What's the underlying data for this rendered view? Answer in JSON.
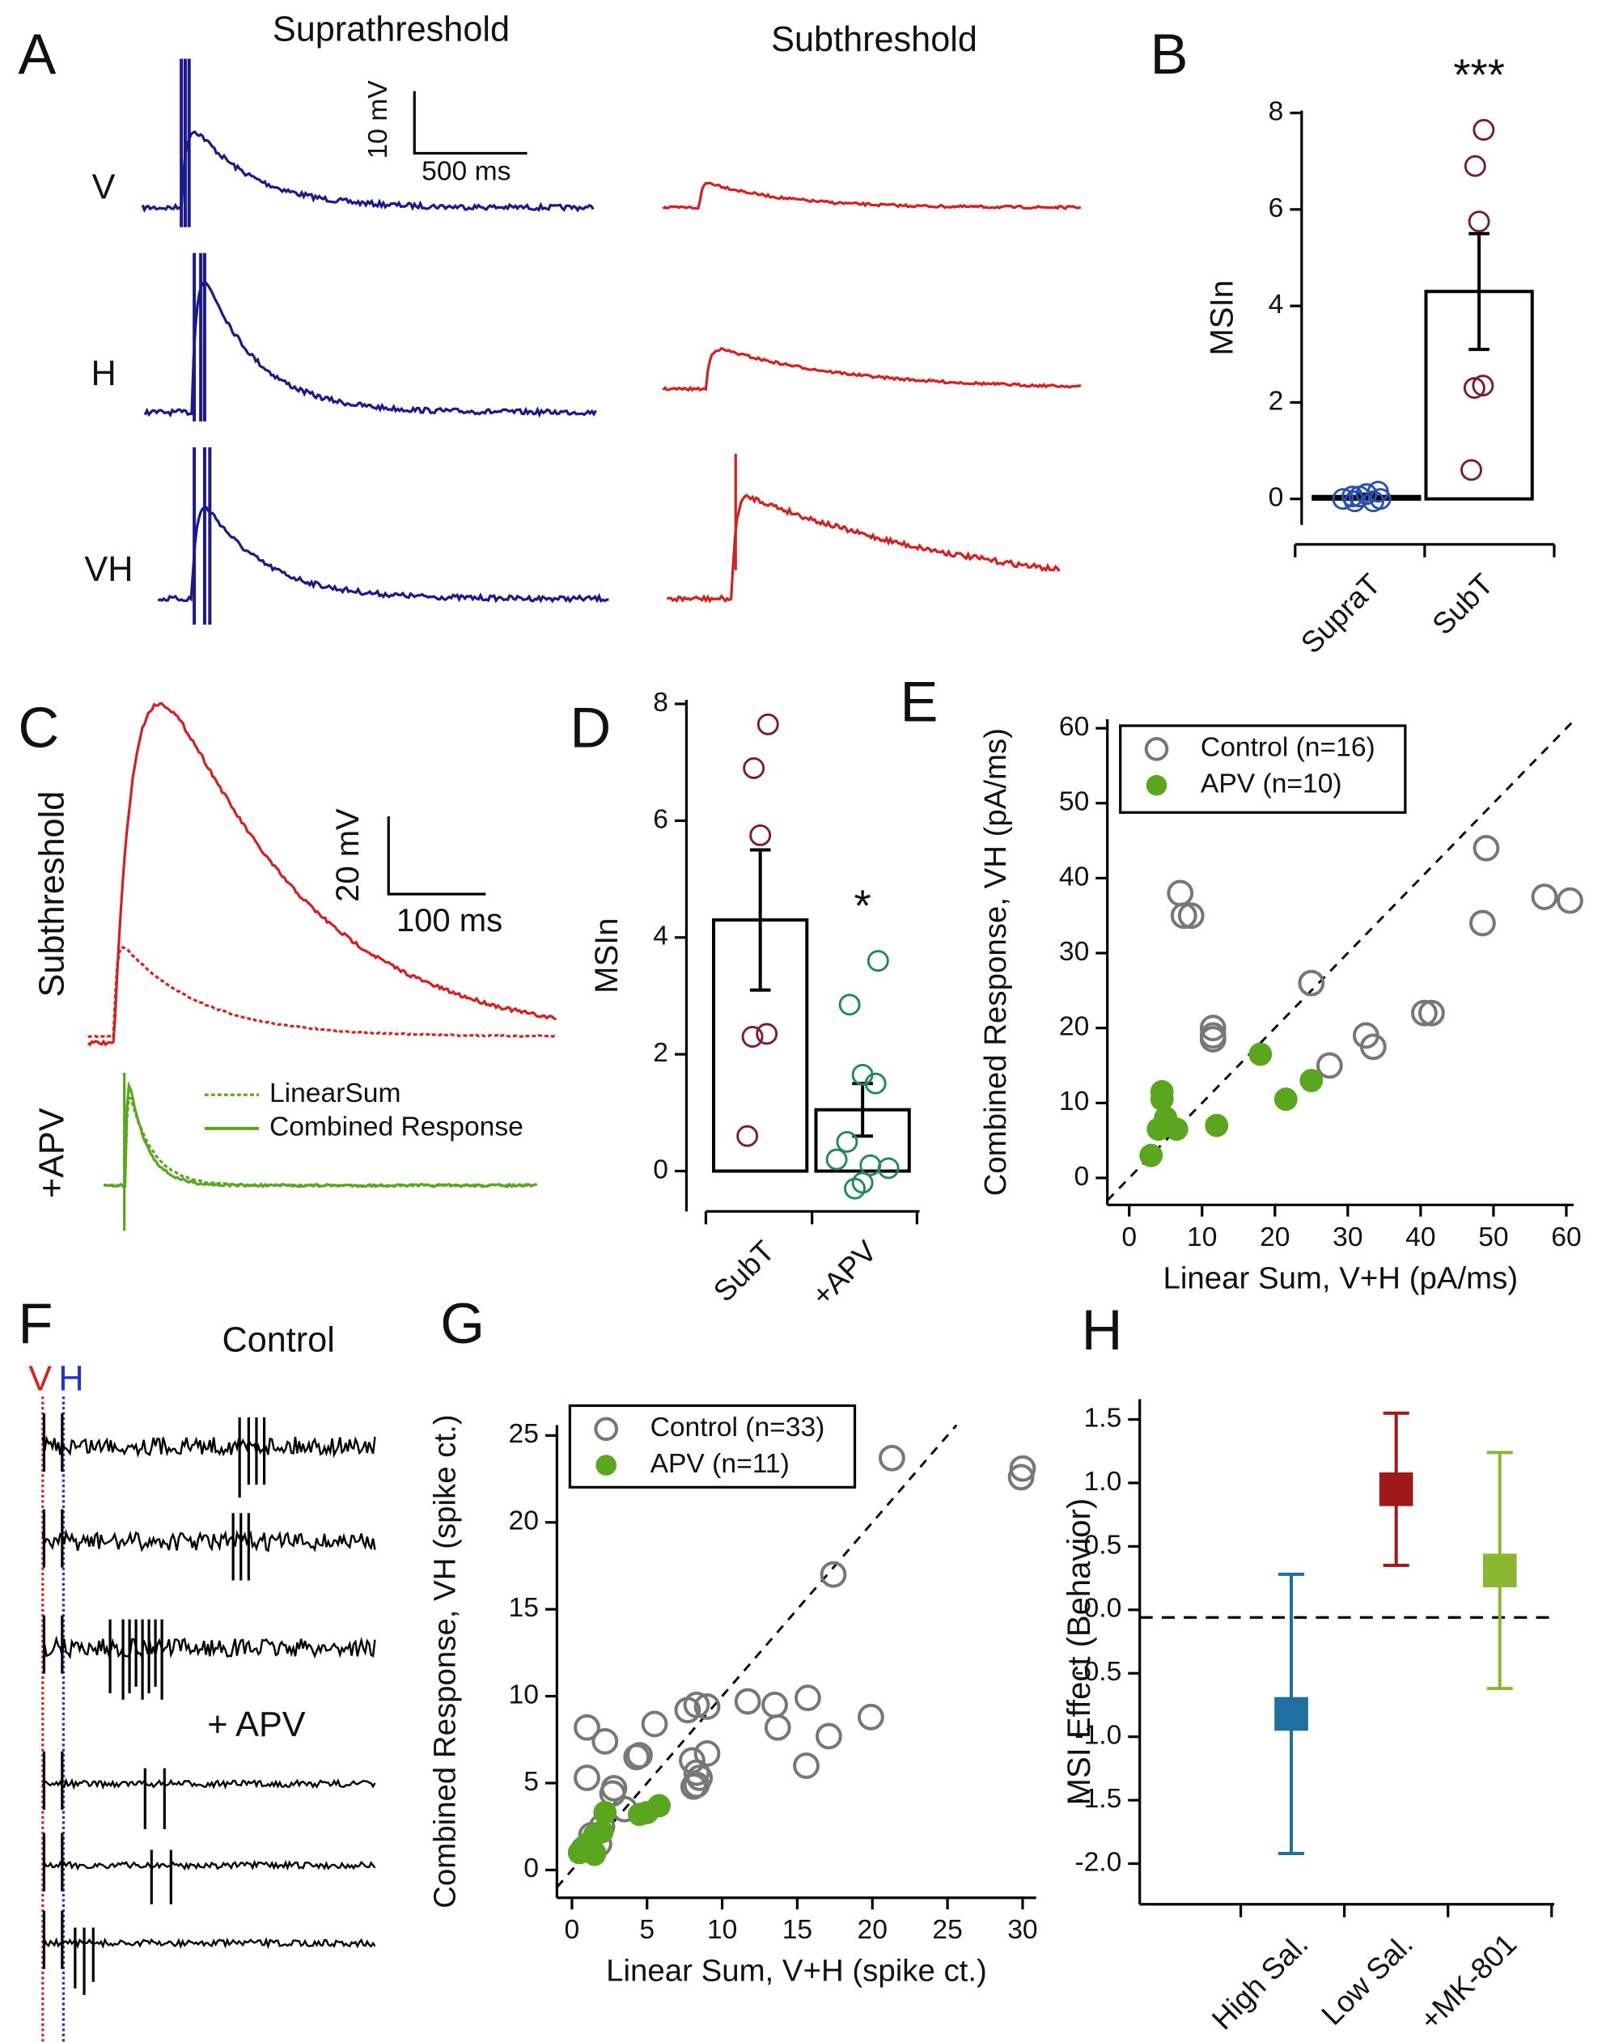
{
  "panel_labels": [
    "A",
    "B",
    "C",
    "D",
    "E",
    "F",
    "G",
    "H"
  ],
  "panel_a": {
    "titles": [
      "Suprathreshold",
      "Subthreshold"
    ],
    "rows": [
      "V",
      "H",
      "VH"
    ],
    "scale_bar": [
      "10 mV",
      "500 ms"
    ]
  },
  "panel_c": {
    "labels": [
      "Subthreshold",
      "+APV"
    ],
    "legend": [
      "LinearSum",
      "Combined Response"
    ],
    "scale_bar": [
      "20 mV",
      "100 ms"
    ]
  },
  "panel_f": {
    "labels": [
      "Control",
      "+ APV"
    ],
    "markers": [
      "V",
      "H"
    ]
  },
  "chart_data": [
    {
      "type": "bar",
      "ylabel": "MSIn",
      "categories": [
        "SupraT",
        "SubT"
      ],
      "values": [
        0.05,
        4.3
      ],
      "errors": [
        0.05,
        1.2
      ],
      "points": [
        [
          0.0,
          -0.05,
          0.1,
          0.15,
          0.05,
          0.0,
          -0.05,
          0.1,
          0.05
        ],
        [
          7.65,
          6.9,
          5.75,
          2.35,
          2.3,
          0.6
        ]
      ],
      "point_colors": [
        "#2a4fae",
        "#7a1a3a"
      ],
      "annotation": "***",
      "ylim": [
        -0.54,
        8.05
      ],
      "yticks": [
        0,
        2,
        4,
        6,
        8
      ]
    },
    {
      "type": "bar",
      "ylabel": "MSIn",
      "categories": [
        "SubT",
        "+APV"
      ],
      "values": [
        4.3,
        1.05
      ],
      "errors": [
        1.2,
        0.45
      ],
      "points": [
        [
          7.65,
          6.9,
          5.75,
          2.35,
          2.3,
          0.6
        ],
        [
          3.6,
          2.85,
          1.65,
          1.5,
          0.5,
          0.2,
          0.1,
          -0.2,
          -0.3,
          0.05
        ]
      ],
      "point_colors": [
        "#7a1a3a",
        "#1e8a5a"
      ],
      "annotation": "*",
      "ylim": [
        -0.69,
        8.07
      ],
      "yticks": [
        0,
        2,
        4,
        6,
        8
      ]
    },
    {
      "type": "scatter",
      "xlabel": "Linear Sum, V+H (pA/ms)",
      "ylabel": "Combined Response, VH (pA/ms)",
      "diagonal": true,
      "xlim": [
        -3,
        61
      ],
      "ylim": [
        -3.6,
        61.2
      ],
      "xticks": [
        0,
        10,
        20,
        30,
        40,
        50,
        60
      ],
      "yticks": [
        0,
        10,
        20,
        30,
        40,
        50,
        60
      ],
      "series": [
        {
          "name": "Control (n=16)",
          "color": "#777777",
          "marker": "open",
          "x": [
            7,
            7.5,
            8.5,
            11.5,
            11.5,
            11.5,
            25,
            27.5,
            32.5,
            33.5,
            40.5,
            41.5,
            49,
            48.5,
            57,
            60.5
          ],
          "values": [
            38,
            35,
            35,
            20,
            19,
            18.5,
            26,
            15,
            19,
            17.5,
            22,
            22,
            44,
            34,
            37.5,
            37
          ]
        },
        {
          "name": "APV (n=10)",
          "color": "#5aa61e",
          "marker": "filled",
          "x": [
            3,
            4,
            4.5,
            4.5,
            5,
            6.5,
            12,
            18,
            21.5,
            25
          ],
          "values": [
            3,
            6.5,
            11.5,
            10.5,
            8,
            6.5,
            7,
            16.5,
            10.5,
            13
          ]
        }
      ]
    },
    {
      "type": "scatter",
      "xlabel": "Linear Sum, V+H (spike ct.)",
      "ylabel": "Combined Response, VH (spike ct.)",
      "diagonal": true,
      "xlim": [
        -1,
        30.9
      ],
      "ylim": [
        -1.6,
        25.6
      ],
      "xticks": [
        0,
        5,
        10,
        15,
        20,
        25,
        30
      ],
      "yticks": [
        0,
        5,
        10,
        15,
        20,
        25
      ],
      "series": [
        {
          "name": "Control (n=33)",
          "color": "#777777",
          "marker": "open",
          "x": [
            1,
            1,
            2.2,
            2.8,
            2.7,
            4.3,
            4.5,
            5.5,
            7.7,
            8.3,
            9,
            8,
            8.3,
            8.5,
            8.3,
            8.1,
            9,
            11.7,
            13.5,
            13.7,
            15.7,
            15.6,
            17.1,
            19.9,
            17.4,
            21.3,
            30,
            29.9,
            1.3,
            2,
            1.8,
            0.8,
            3.5
          ],
          "values": [
            8.2,
            5.3,
            7.4,
            4.7,
            4.4,
            6.5,
            6.6,
            8.4,
            9.2,
            9.5,
            9.4,
            6.3,
            5.6,
            5.3,
            4.9,
            4.8,
            6.7,
            9.7,
            9.5,
            8.2,
            9.9,
            6,
            7.7,
            8.8,
            17,
            23.7,
            23.1,
            22.6,
            2,
            2.5,
            1.5,
            1.2,
            3.5
          ]
        },
        {
          "name": "APV (n=11)",
          "color": "#5aa61e",
          "marker": "filled",
          "x": [
            0.5,
            1,
            1.5,
            1.5,
            2,
            2.2,
            4.5,
            5,
            5.8,
            1.2,
            1.5
          ],
          "values": [
            1,
            1.5,
            1,
            0.9,
            2.2,
            3.3,
            3.2,
            3.3,
            3.7,
            1.2,
            2
          ]
        }
      ]
    },
    {
      "type": "errorbar",
      "ylabel": "MSI Effect (Behavior)",
      "categories": [
        "High Sal.",
        "Low Sal.",
        "+MK-801"
      ],
      "values": [
        -0.82,
        0.95,
        0.31
      ],
      "errors": [
        1.1,
        0.6,
        0.93
      ],
      "colors": [
        "#1f6fa0",
        "#a01818",
        "#8ab830"
      ],
      "reference_line": -0.06,
      "ylim": [
        -2.32,
        1.66
      ],
      "yticks": [
        1.5,
        {
          "value": 1,
          "label": "1.0"
        },
        0.5,
        {
          "value": 0,
          "label": "0.0"
        },
        -0.5,
        {
          "value": -1,
          "label": "-1.0"
        },
        -1.5,
        {
          "value": -2,
          "label": "-2.0"
        }
      ]
    }
  ]
}
